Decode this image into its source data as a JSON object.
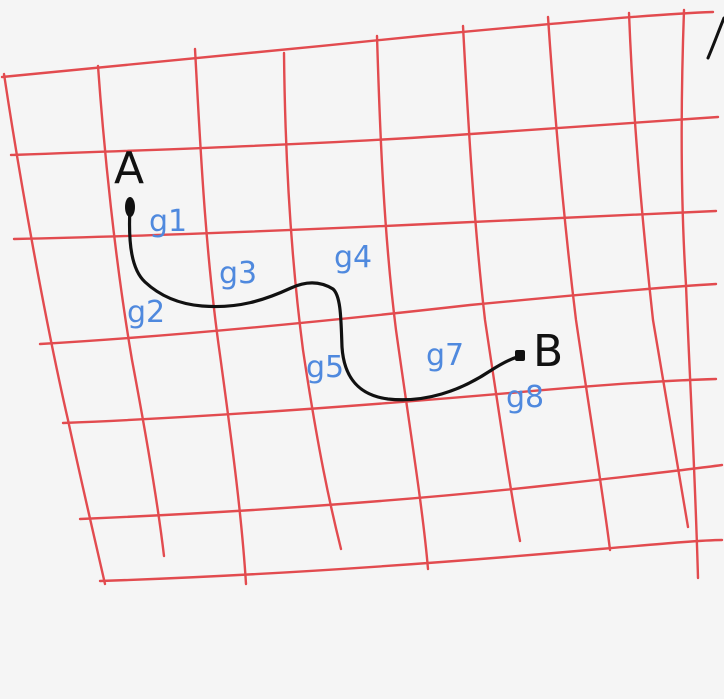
{
  "colors": {
    "grid": "#e24b4f",
    "path": "#111111",
    "labels": "#4f89de",
    "endpoints": "#111111",
    "paper": "#f5f5f5"
  },
  "endpoints": {
    "start_label": "A",
    "end_label": "B"
  },
  "cell_labels": {
    "g1": "g1",
    "g2": "g2",
    "g3": "g3",
    "g4": "g4",
    "g5": "g5",
    "g7": "g7",
    "g8": "g8"
  }
}
